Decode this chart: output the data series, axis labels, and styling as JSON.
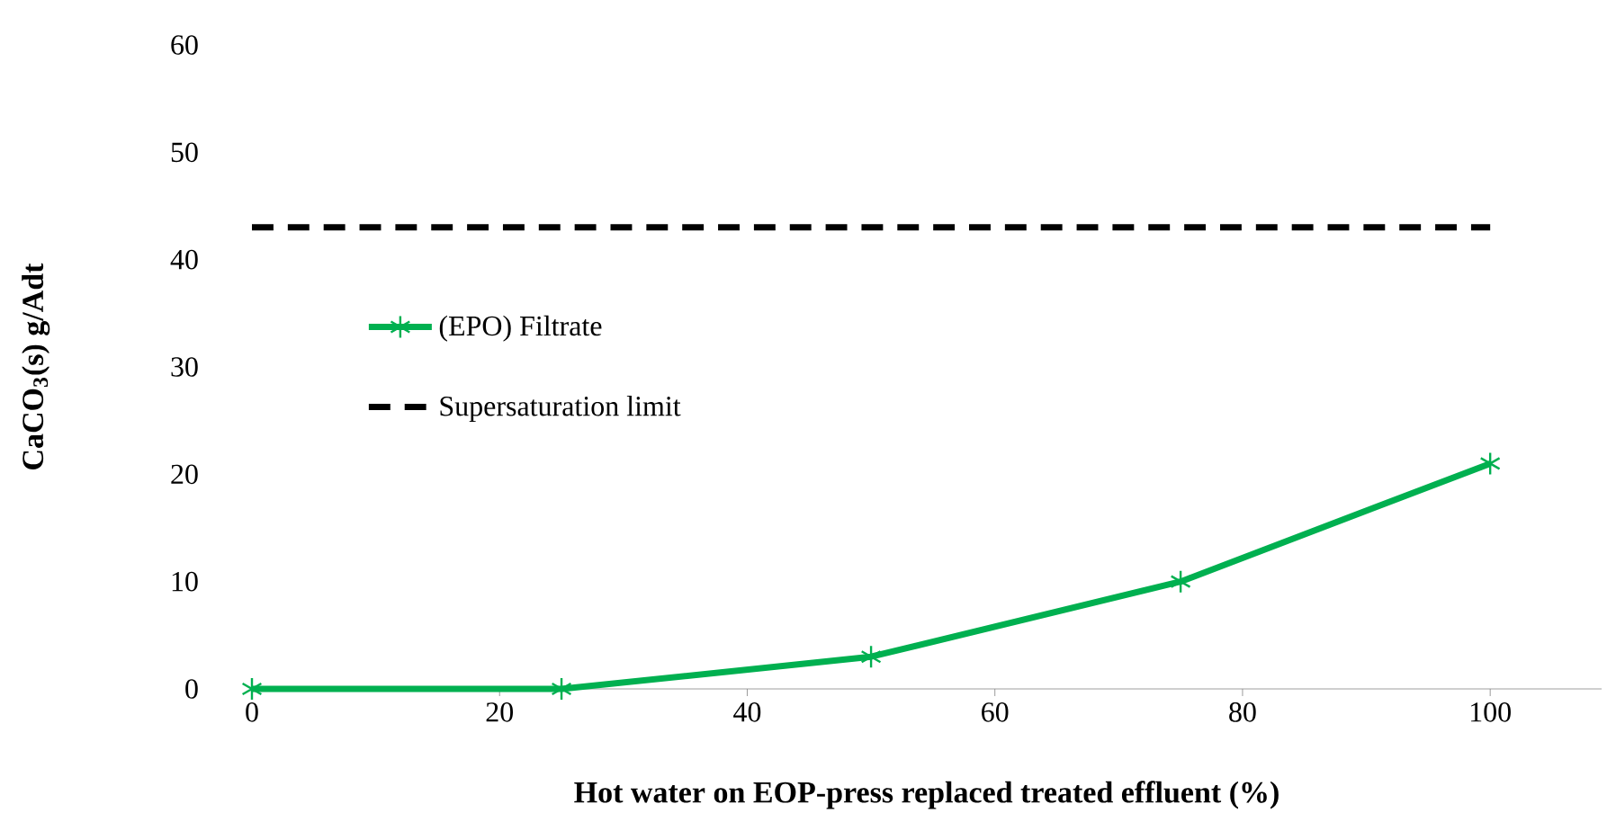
{
  "chart_data": {
    "type": "line",
    "xlabel": "Hot water on EOP-press replaced treated effluent (%)",
    "ylabel": "CaCO$_{3}$(s) g/Adt",
    "x": [
      0,
      25,
      50,
      75,
      100
    ],
    "series": [
      {
        "name": "(EPO) Filtrate",
        "color": "#00b050",
        "values": [
          0,
          0,
          3,
          10,
          21
        ],
        "marker": "cross",
        "line_style": "solid"
      },
      {
        "name": "Supersaturation limit",
        "color": "#000000",
        "values": [
          43,
          43,
          43,
          43,
          43
        ],
        "marker": "none",
        "line_style": "dashed"
      }
    ],
    "xlim": [
      0,
      109
    ],
    "xticks": [
      0,
      20,
      40,
      60,
      80,
      100
    ],
    "ylim": [
      0,
      60
    ],
    "yticks": [
      0,
      10,
      20,
      30,
      40,
      50,
      60
    ],
    "grid": false,
    "legend": "left"
  }
}
